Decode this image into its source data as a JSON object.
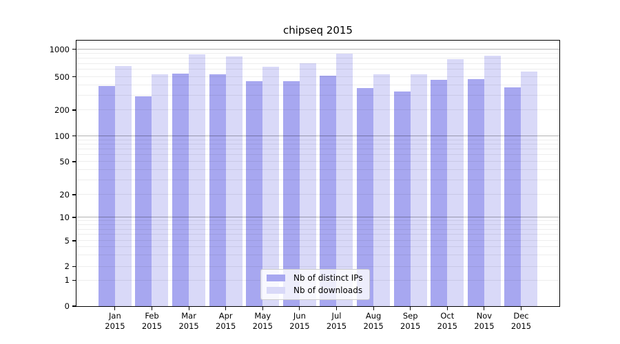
{
  "chart_data": {
    "type": "bar",
    "title": "chipseq 2015",
    "categories": [
      "Jan",
      "Feb",
      "Mar",
      "Apr",
      "May",
      "Jun",
      "Jul",
      "Aug",
      "Sep",
      "Oct",
      "Nov",
      "Dec"
    ],
    "category_year": "2015",
    "series": [
      {
        "key": "distinct-ips",
        "name": "Nb of distinct IPs",
        "color": "#a7a7f0",
        "values": [
          390,
          290,
          540,
          535,
          440,
          445,
          515,
          365,
          335,
          460,
          465,
          370
        ]
      },
      {
        "key": "downloads",
        "name": "Nb of downloads",
        "color": "#d9d9f8",
        "values": [
          650,
          535,
          880,
          830,
          645,
          700,
          890,
          535,
          530,
          780,
          850,
          570
        ]
      }
    ],
    "y_axis": {
      "scale": "symlog",
      "ticks": [
        0,
        1,
        2,
        5,
        10,
        20,
        50,
        100,
        200,
        500,
        1000
      ],
      "minor_gridlines": [
        1,
        2,
        3,
        4,
        5,
        6,
        7,
        8,
        9,
        20,
        30,
        40,
        50,
        60,
        70,
        80,
        90,
        200,
        300,
        400,
        500,
        600,
        700,
        800,
        900
      ],
      "major_gridlines": [
        10,
        100,
        1000
      ]
    },
    "legend": {
      "position": "bottom-center"
    },
    "colors": {
      "grid_major": "rgba(0,0,0,0.30)",
      "grid_minor": "rgba(0,0,0,0.07)",
      "axis": "#000000",
      "background": "#ffffff"
    }
  }
}
